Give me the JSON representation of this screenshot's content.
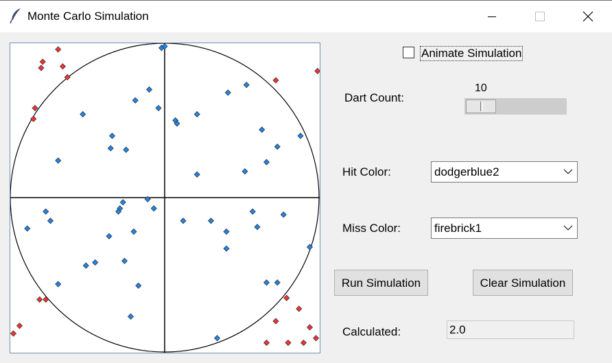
{
  "window": {
    "title": "Monte Carlo Simulation",
    "icon": "feather-icon",
    "controls": [
      "minimize-icon",
      "maximize-icon",
      "close-icon"
    ]
  },
  "controls": {
    "animate_label": "Animate Simulation",
    "animate_checked": false,
    "dart_count_label": "Dart Count:",
    "dart_count_value": "10",
    "dart_count_slider_fraction": 0.03,
    "hit_color_label": "Hit Color:",
    "hit_color_value": "dodgerblue2",
    "miss_color_label": "Miss Color:",
    "miss_color_value": "firebrick1",
    "run_button": "Run Simulation",
    "clear_button": "Clear Simulation",
    "calculated_label": "Calculated:",
    "calculated_value": "2.0"
  },
  "colors": {
    "hit": "#1c86ee",
    "miss": "#ff3030",
    "dot_outline": "#333333",
    "axis": "#000000"
  },
  "simulation": {
    "range": [
      -1,
      1
    ],
    "hits": [
      [
        -0.02,
        0.97
      ],
      [
        0.0,
        0.98
      ],
      [
        -0.1,
        0.7
      ],
      [
        -0.19,
        0.63
      ],
      [
        -0.04,
        0.58
      ],
      [
        0.07,
        0.5
      ],
      [
        0.08,
        0.48
      ],
      [
        0.21,
        0.54
      ],
      [
        0.41,
        0.68
      ],
      [
        0.53,
        0.73
      ],
      [
        -0.53,
        0.54
      ],
      [
        -0.34,
        0.4
      ],
      [
        -0.25,
        0.31
      ],
      [
        -0.35,
        0.32
      ],
      [
        -0.69,
        0.24
      ],
      [
        0.63,
        0.44
      ],
      [
        0.73,
        0.33
      ],
      [
        0.88,
        0.4
      ],
      [
        0.66,
        0.23
      ],
      [
        0.52,
        0.17
      ],
      [
        0.21,
        0.15
      ],
      [
        -0.27,
        -0.03
      ],
      [
        -0.29,
        -0.07
      ],
      [
        -0.3,
        -0.09
      ],
      [
        -0.11,
        -0.01
      ],
      [
        -0.07,
        -0.07
      ],
      [
        -0.77,
        -0.09
      ],
      [
        -0.74,
        -0.15
      ],
      [
        -0.89,
        -0.2
      ],
      [
        0.12,
        -0.15
      ],
      [
        0.3,
        -0.15
      ],
      [
        0.4,
        -0.22
      ],
      [
        0.57,
        -0.09
      ],
      [
        0.6,
        -0.19
      ],
      [
        0.77,
        -0.11
      ],
      [
        -0.2,
        -0.22
      ],
      [
        -0.36,
        -0.25
      ],
      [
        0.94,
        -0.32
      ],
      [
        0.4,
        -0.33
      ],
      [
        -0.26,
        -0.41
      ],
      [
        -0.45,
        -0.42
      ],
      [
        -0.51,
        -0.44
      ],
      [
        -0.69,
        -0.56
      ],
      [
        -0.17,
        -0.57
      ],
      [
        0.66,
        -0.55
      ],
      [
        0.73,
        -0.55
      ],
      [
        -0.22,
        -0.77
      ],
      [
        0.34,
        -0.91
      ]
    ],
    "misses": [
      [
        -0.69,
        0.96
      ],
      [
        -0.79,
        0.88
      ],
      [
        -0.8,
        0.84
      ],
      [
        -0.66,
        0.85
      ],
      [
        -0.63,
        0.78
      ],
      [
        0.72,
        0.76
      ],
      [
        0.99,
        0.82
      ],
      [
        -0.84,
        0.58
      ],
      [
        -0.85,
        0.51
      ],
      [
        0.79,
        -0.65
      ],
      [
        0.87,
        -0.72
      ],
      [
        -0.81,
        -0.66
      ],
      [
        -0.77,
        -0.66
      ],
      [
        0.72,
        -0.8
      ],
      [
        0.94,
        -0.84
      ],
      [
        -0.94,
        -0.83
      ],
      [
        -0.98,
        -0.88
      ],
      [
        0.66,
        -0.94
      ],
      [
        0.8,
        -0.94
      ],
      [
        0.9,
        -0.94
      ],
      [
        0.98,
        -0.91
      ]
    ]
  }
}
